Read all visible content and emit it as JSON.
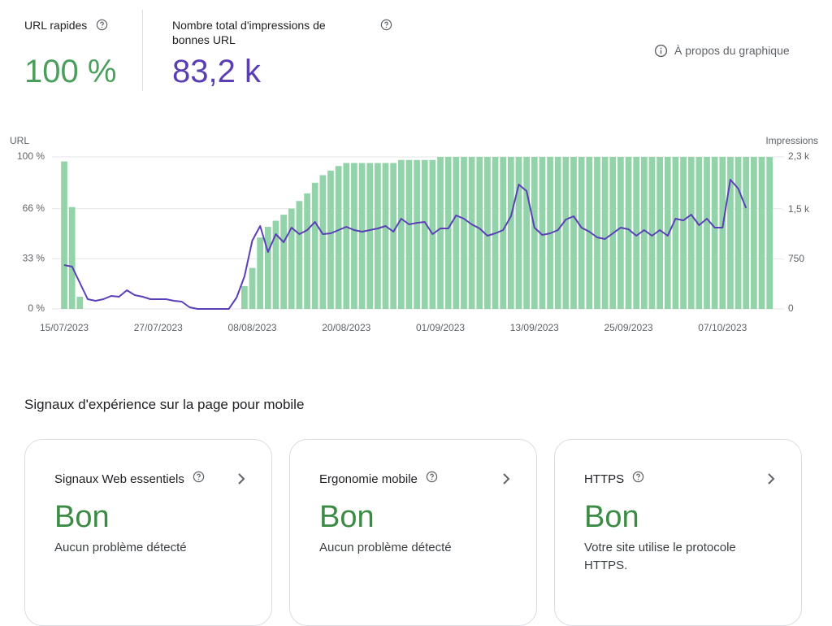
{
  "header": {
    "metrics": [
      {
        "label": "URL rapides",
        "value": "100 %"
      },
      {
        "label": "Nombre total d'impressions de bonnes URL",
        "value": "83,2 k"
      }
    ],
    "about": "À propos du graphique"
  },
  "chart_data": {
    "type": "bar",
    "ylabel": "URL",
    "y2label": "Impressions",
    "categories": [
      "15/07/2023",
      null,
      null,
      null,
      null,
      null,
      null,
      null,
      null,
      null,
      null,
      null,
      "27/07/2023",
      null,
      null,
      null,
      null,
      null,
      null,
      null,
      null,
      null,
      null,
      null,
      "08/08/2023",
      null,
      null,
      null,
      null,
      null,
      null,
      null,
      null,
      null,
      null,
      null,
      "20/08/2023",
      null,
      null,
      null,
      null,
      null,
      null,
      null,
      null,
      null,
      null,
      null,
      "01/09/2023",
      null,
      null,
      null,
      null,
      null,
      null,
      null,
      null,
      null,
      null,
      null,
      "13/09/2023",
      null,
      null,
      null,
      null,
      null,
      null,
      null,
      null,
      null,
      null,
      null,
      "25/09/2023",
      null,
      null,
      null,
      null,
      null,
      null,
      null,
      null,
      null,
      null,
      null,
      "07/10/2023",
      null,
      null,
      null,
      null,
      null,
      null
    ],
    "series": [
      {
        "type": "bar",
        "axis": "y",
        "color": "#93d3a9",
        "values": [
          97,
          67,
          8,
          0,
          0,
          0,
          0,
          0,
          0,
          0,
          0,
          0,
          0,
          0,
          0,
          0,
          0,
          0,
          0,
          0,
          0,
          0,
          0,
          15,
          27,
          47,
          54,
          58,
          62,
          66,
          71,
          76,
          83,
          88,
          91,
          94,
          96,
          96,
          96,
          96,
          96,
          96,
          96,
          98,
          98,
          98,
          98,
          98,
          100,
          100,
          100,
          100,
          100,
          100,
          100,
          100,
          100,
          100,
          100,
          100,
          100,
          100,
          100,
          100,
          100,
          100,
          100,
          100,
          100,
          100,
          100,
          100,
          100,
          100,
          100,
          100,
          100,
          100,
          100,
          100,
          100,
          100,
          100,
          100,
          100,
          100,
          100,
          100,
          100,
          100,
          100
        ]
      },
      {
        "type": "line",
        "axis": "y2",
        "color": "#5b3fb8",
        "values": [
          664,
          640,
          394,
          148,
          123,
          148,
          197,
          185,
          283,
          209,
          185,
          148,
          148,
          148,
          123,
          111,
          25,
          0,
          0,
          0,
          0,
          0,
          172,
          492,
          1033,
          1255,
          861,
          1131,
          1009,
          1230,
          1131,
          1193,
          1316,
          1131,
          1144,
          1193,
          1242,
          1193,
          1168,
          1193,
          1218,
          1255,
          1168,
          1365,
          1279,
          1303,
          1316,
          1131,
          1218,
          1218,
          1414,
          1365,
          1279,
          1218,
          1107,
          1144,
          1193,
          1402,
          1882,
          1783,
          1230,
          1119,
          1144,
          1193,
          1353,
          1402,
          1230,
          1168,
          1082,
          1058,
          1144,
          1230,
          1205,
          1107,
          1193,
          1107,
          1193,
          1107,
          1365,
          1340,
          1427,
          1267,
          1365,
          1230,
          1230,
          1956,
          1820,
          1525,
          null,
          null,
          null
        ]
      }
    ],
    "ylim": [
      0,
      100
    ],
    "yticks": [
      {
        "value": 0,
        "label": "0 %"
      },
      {
        "value": 33,
        "label": "33 %"
      },
      {
        "value": 66,
        "label": "66 %"
      },
      {
        "value": 100,
        "label": "100 %"
      }
    ],
    "y2lim": [
      0,
      2300
    ],
    "y2ticks": [
      0,
      750,
      {
        "value": 1500,
        "label": "1,5 k"
      },
      {
        "value": 2300,
        "label": "2,3 k"
      }
    ],
    "grid": true
  },
  "section": {
    "title": "Signaux d'expérience sur la page pour mobile",
    "cards": [
      {
        "title": "Signaux Web essentiels",
        "status": "Bon",
        "description": "Aucun problème détecté"
      },
      {
        "title": "Ergonomie mobile",
        "status": "Bon",
        "description": "Aucun problème détecté"
      },
      {
        "title": "HTTPS",
        "status": "Bon",
        "description": "Votre site utilise le protocole HTTPS."
      }
    ]
  }
}
